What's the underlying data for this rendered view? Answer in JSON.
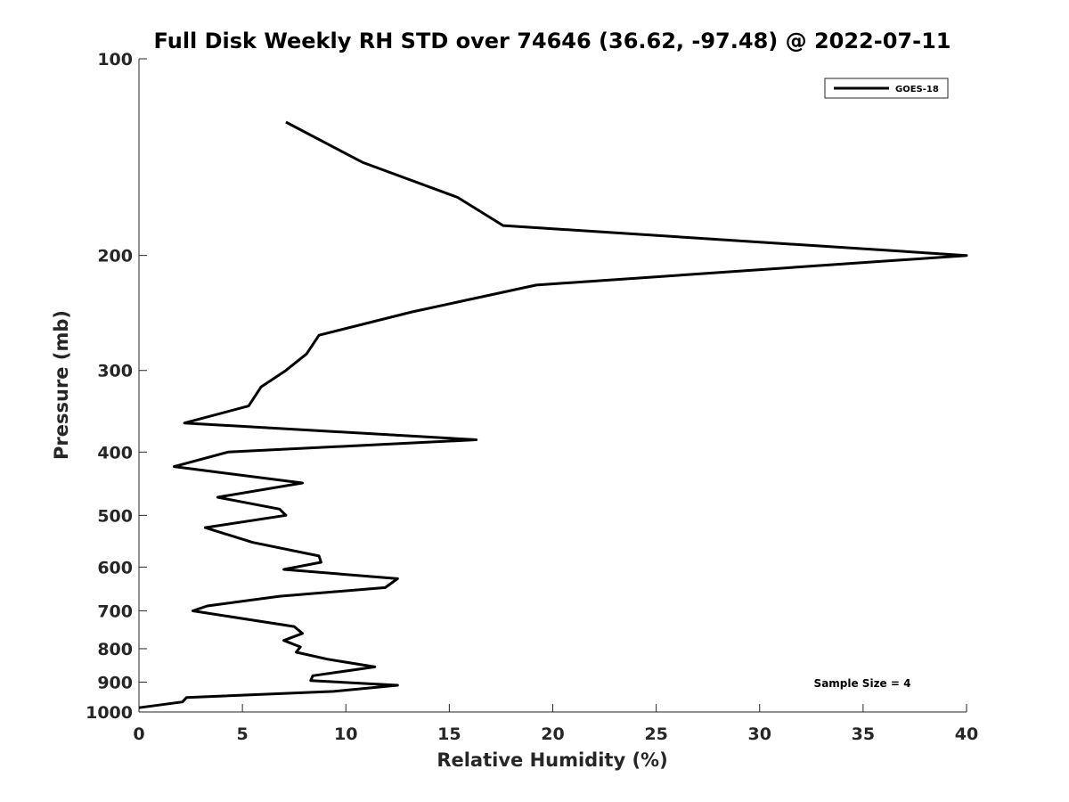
{
  "chart_data": {
    "type": "line",
    "title": "Full Disk Weekly RH STD over 74646 (36.62, -97.48) @ 2022-07-11",
    "xlabel": "Relative Humidity (%)",
    "ylabel": "Pressure (mb)",
    "xlim": [
      0,
      40
    ],
    "ylim": [
      100,
      1000
    ],
    "y_scale": "log",
    "y_reversed": true,
    "x_ticks": [
      0,
      5,
      10,
      15,
      20,
      25,
      30,
      35,
      40
    ],
    "y_ticks": [
      100,
      200,
      300,
      400,
      500,
      600,
      700,
      800,
      900,
      1000
    ],
    "grid": false,
    "legend_position": "top-right",
    "annotation": "Sample Size = 4",
    "series": [
      {
        "name": "GOES-18",
        "color": "#000000",
        "x": [
          7.1,
          10.8,
          15.4,
          17.6,
          40.0,
          19.2,
          13.2,
          8.7,
          8.1,
          7.1,
          5.9,
          5.3,
          2.2,
          16.3,
          4.3,
          1.7,
          7.9,
          3.8,
          6.8,
          7.1,
          3.2,
          5.5,
          8.7,
          8.8,
          7.0,
          12.5,
          11.9,
          6.8,
          3.3,
          2.6,
          7.5,
          7.9,
          7.0,
          7.8,
          7.6,
          9.1,
          11.4,
          8.4,
          8.3,
          12.5,
          9.4,
          2.3,
          2.1,
          0.0
        ],
        "y": [
          125,
          144,
          163,
          180,
          200,
          222,
          244,
          265,
          283,
          300,
          318,
          340,
          361,
          383,
          400,
          421,
          446,
          469,
          489,
          500,
          522,
          550,
          577,
          590,
          605,
          625,
          645,
          665,
          688,
          700,
          740,
          758,
          777,
          795,
          810,
          830,
          853,
          880,
          895,
          910,
          930,
          950,
          965,
          985
        ]
      }
    ]
  }
}
